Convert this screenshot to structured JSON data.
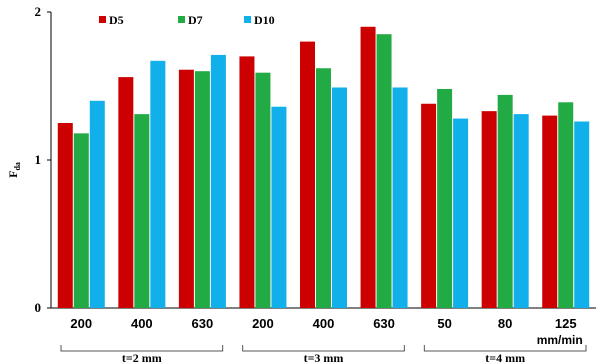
{
  "chart_data": {
    "type": "bar",
    "ylabel": "F",
    "ylabel_sub": "da",
    "ylim": [
      0,
      2
    ],
    "yticks": [
      "0",
      "1",
      "2"
    ],
    "categories": [
      "200",
      "400",
      "630",
      "200",
      "400",
      "630",
      "50",
      "80",
      "125"
    ],
    "unit_label": "mm/min",
    "groups": [
      {
        "label": "t=2 mm",
        "range": [
          0,
          2
        ]
      },
      {
        "label": "t=3 mm",
        "range": [
          3,
          5
        ]
      },
      {
        "label": "t=4 mm",
        "range": [
          6,
          8
        ]
      }
    ],
    "series": [
      {
        "name": "D5",
        "color": "#cc0000",
        "values": [
          1.25,
          1.56,
          1.61,
          1.7,
          1.8,
          1.9,
          1.38,
          1.33,
          1.3
        ]
      },
      {
        "name": "D7",
        "color": "#22aa44",
        "values": [
          1.18,
          1.31,
          1.6,
          1.59,
          1.62,
          1.85,
          1.48,
          1.44,
          1.39
        ]
      },
      {
        "name": "D10",
        "color": "#11b0ea",
        "values": [
          1.4,
          1.67,
          1.71,
          1.36,
          1.49,
          1.49,
          1.28,
          1.31,
          1.26
        ]
      }
    ],
    "legend_position": "top-left",
    "grid": false
  }
}
